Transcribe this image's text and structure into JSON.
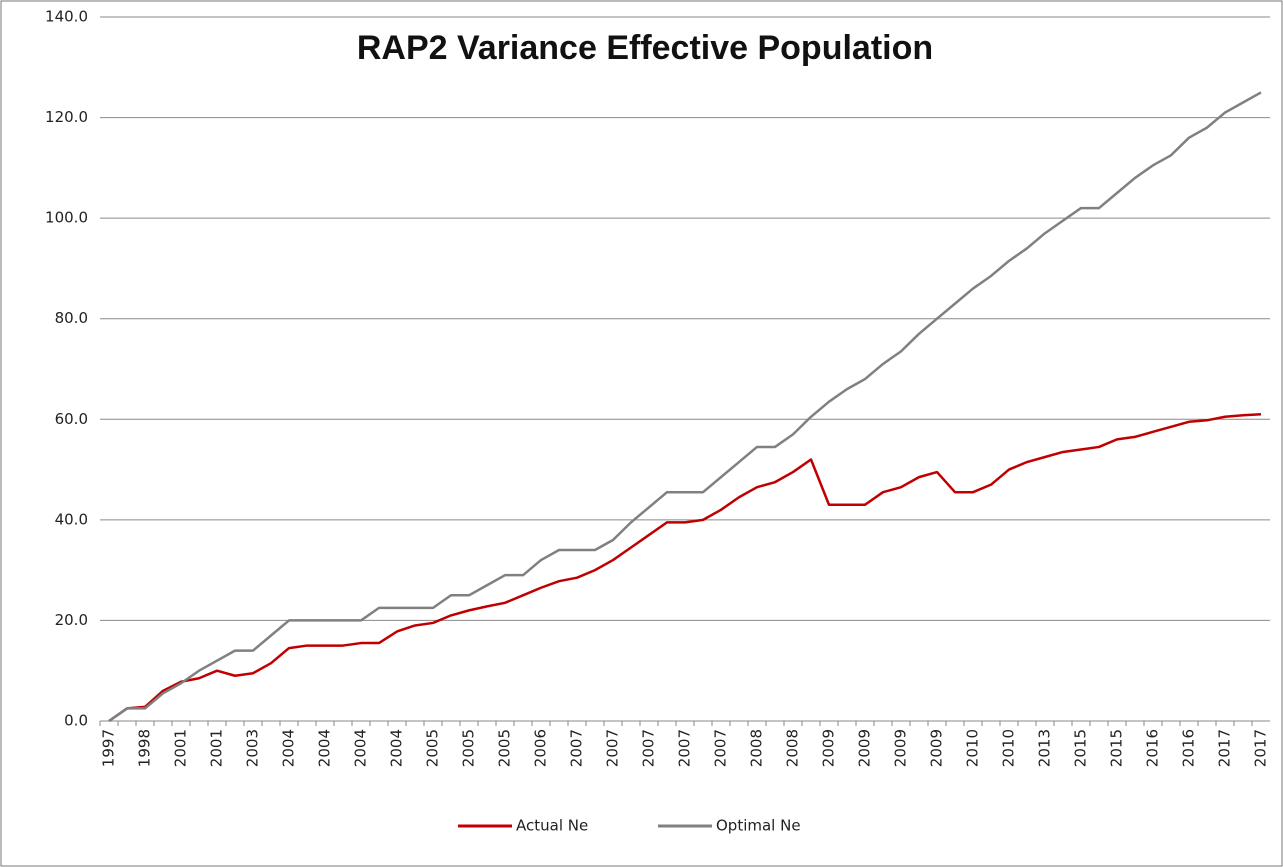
{
  "chart_data": {
    "type": "line",
    "title": "RAP2 Variance Effective Population",
    "categories": [
      "1997",
      null,
      "1998",
      null,
      "2001",
      null,
      "2001",
      null,
      "2003",
      null,
      "2004",
      null,
      "2004",
      null,
      "2004",
      null,
      "2004",
      null,
      "2005",
      null,
      "2005",
      null,
      "2005",
      null,
      "2006",
      null,
      "2007",
      null,
      "2007",
      null,
      "2007",
      null,
      "2007",
      null,
      "2007",
      null,
      "2008",
      null,
      "2008",
      null,
      "2009",
      null,
      "2009",
      null,
      "2009",
      null,
      "2009",
      null,
      "2010",
      null,
      "2010",
      null,
      "2013",
      null,
      "2015",
      null,
      "2015",
      null,
      "2016",
      null,
      "2016",
      null,
      "2017",
      null,
      "2017"
    ],
    "series": [
      {
        "name": "Actual Ne",
        "color": "#c00000",
        "values": [
          0,
          2.5,
          2.8,
          6,
          7.8,
          8.5,
          10,
          9,
          9.5,
          11.5,
          14.5,
          15,
          15,
          15,
          15.5,
          15.5,
          17.8,
          19,
          19.5,
          21,
          22,
          22.8,
          23.5,
          25,
          26.5,
          27.8,
          28.5,
          30,
          32,
          34.5,
          37,
          39.5,
          39.5,
          40,
          42,
          44.5,
          46.5,
          47.5,
          49.5,
          52,
          43,
          43,
          43,
          45.5,
          46.5,
          48.5,
          49.5,
          45.5,
          45.5,
          47,
          50,
          51.5,
          52.5,
          53.5,
          54,
          54.5,
          56,
          56.5,
          57.5,
          58.5,
          59.5,
          59.8,
          60.5,
          60.8,
          61
        ]
      },
      {
        "name": "Optimal Ne",
        "color": "#808080",
        "values": [
          0,
          2.5,
          2.5,
          5.5,
          7.5,
          10,
          12,
          14,
          14,
          17,
          20,
          20,
          20,
          20,
          20,
          22.5,
          22.5,
          22.5,
          22.5,
          25,
          25,
          27,
          29,
          29,
          32,
          34,
          34,
          34,
          36,
          39.5,
          42.5,
          45.5,
          45.5,
          45.5,
          48.5,
          51.5,
          54.5,
          54.5,
          57,
          60.5,
          63.5,
          66,
          68,
          71,
          73.5,
          77,
          80,
          83,
          86,
          88.5,
          91.5,
          94,
          97,
          99.5,
          102,
          102,
          105,
          108,
          110.5,
          112.5,
          116,
          118,
          121,
          123,
          125
        ]
      }
    ],
    "ylim": [
      0,
      140
    ],
    "yticks": [
      {
        "value": 0,
        "label": "0.0"
      },
      {
        "value": 20,
        "label": "20.0"
      },
      {
        "value": 40,
        "label": "40.0"
      },
      {
        "value": 60,
        "label": "60.0"
      },
      {
        "value": 80,
        "label": "80.0"
      },
      {
        "value": 100,
        "label": "100.0"
      },
      {
        "value": 120,
        "label": "120.0"
      },
      {
        "value": 140,
        "label": "140.0"
      }
    ],
    "grid": true,
    "legend": "bottom"
  }
}
